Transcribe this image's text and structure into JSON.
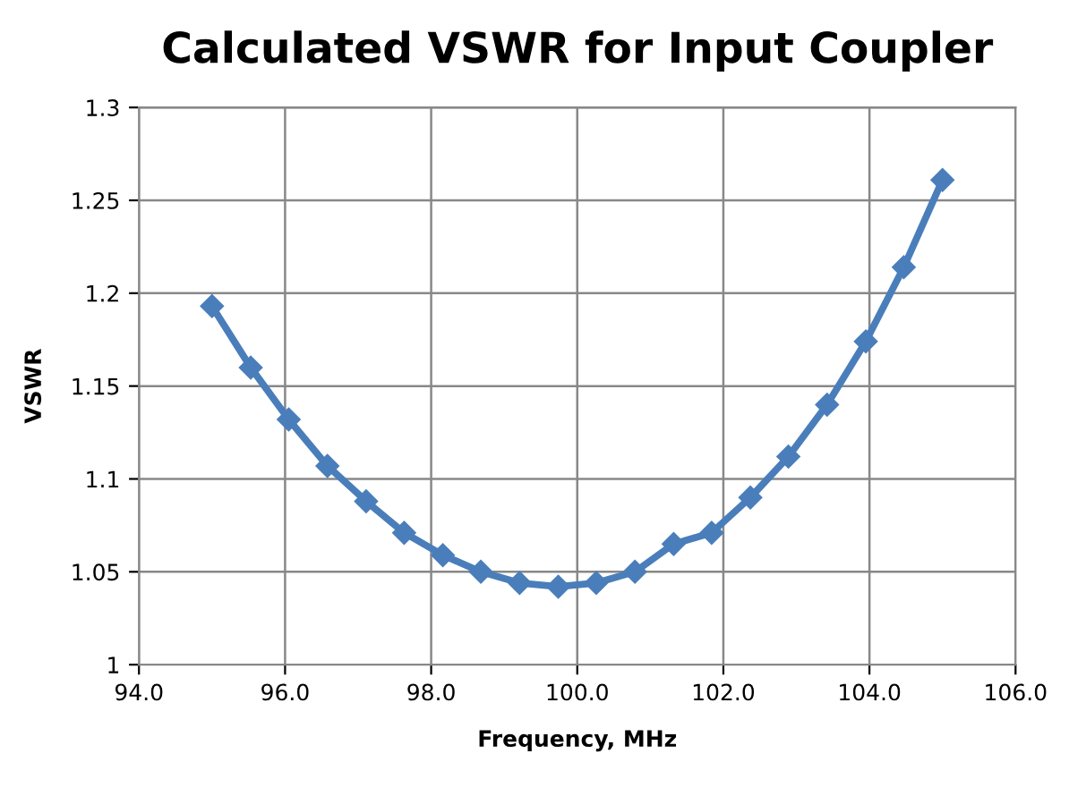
{
  "chart_data": {
    "type": "line",
    "title": "Calculated VSWR for Input Coupler",
    "xlabel": "Frequency, MHz",
    "ylabel": "VSWR",
    "x": [
      95.0,
      95.53,
      96.05,
      96.58,
      97.11,
      97.63,
      98.16,
      98.68,
      99.21,
      99.74,
      100.26,
      100.79,
      101.32,
      101.84,
      102.37,
      102.89,
      103.42,
      103.95,
      104.47,
      105.0
    ],
    "series": [
      {
        "color": "#4a7ebb",
        "values": [
          1.193,
          1.16,
          1.132,
          1.107,
          1.088,
          1.071,
          1.059,
          1.05,
          1.044,
          1.042,
          1.044,
          1.05,
          1.065,
          1.071,
          1.09,
          1.112,
          1.14,
          1.174,
          1.214,
          1.261
        ]
      }
    ],
    "xlim": [
      94,
      106
    ],
    "ylim": [
      1,
      1.3
    ],
    "xticks": [
      {
        "value": 94,
        "label": "94.0"
      },
      {
        "value": 96,
        "label": "96.0"
      },
      {
        "value": 98,
        "label": "98.0"
      },
      {
        "value": 100,
        "label": "100.0"
      },
      {
        "value": 102,
        "label": "102.0"
      },
      {
        "value": 104,
        "label": "104.0"
      },
      {
        "value": 106,
        "label": "106.0"
      }
    ],
    "yticks": [
      1,
      1.05,
      1.1,
      1.15,
      1.2,
      1.25,
      1.3
    ],
    "grid": true,
    "marker": "diamond",
    "line_style": "solid",
    "legend": false
  }
}
